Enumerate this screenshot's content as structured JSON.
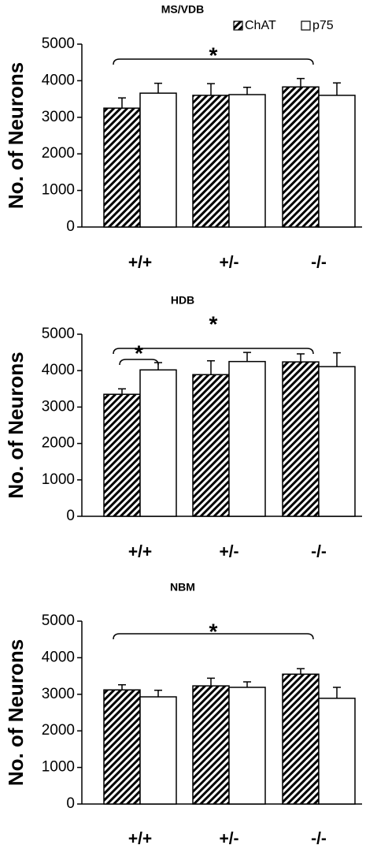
{
  "chart_data": [
    {
      "type": "bar",
      "title": "MS/VDB",
      "ylabel": "No. of Neurons",
      "xlabel": "",
      "categories": [
        "+/+",
        "+/-",
        "-/-"
      ],
      "ylim": [
        0,
        5000
      ],
      "yticks": [
        0,
        1000,
        2000,
        3000,
        4000,
        5000
      ],
      "grid": false,
      "legend": "top-right",
      "series": [
        {
          "name": "ChAT",
          "pattern": "hatched",
          "values": [
            3250,
            3600,
            3830
          ],
          "errors": [
            280,
            320,
            230
          ]
        },
        {
          "name": "p75",
          "pattern": "open",
          "values": [
            3660,
            3620,
            3600
          ],
          "errors": [
            270,
            200,
            340
          ]
        }
      ],
      "annotations": [
        {
          "text": "*",
          "from_category": "+/+",
          "to_category": "-/-"
        }
      ]
    },
    {
      "type": "bar",
      "title": "HDB",
      "ylabel": "No. of Neurons",
      "xlabel": "",
      "categories": [
        "+/+",
        "+/-",
        "-/-"
      ],
      "ylim": [
        0,
        5000
      ],
      "yticks": [
        0,
        1000,
        2000,
        3000,
        4000,
        5000
      ],
      "grid": false,
      "series": [
        {
          "name": "ChAT",
          "pattern": "hatched",
          "values": [
            3350,
            3890,
            4240
          ],
          "errors": [
            150,
            380,
            220
          ]
        },
        {
          "name": "p75",
          "pattern": "open",
          "values": [
            4020,
            4250,
            4110
          ],
          "errors": [
            200,
            250,
            380
          ]
        }
      ],
      "annotations": [
        {
          "text": "*",
          "from_category": "+/+",
          "to_category": "-/-"
        },
        {
          "text": "*",
          "within_category": "+/+"
        }
      ]
    },
    {
      "type": "bar",
      "title": "NBM",
      "ylabel": "No. of Neurons",
      "xlabel": "",
      "categories": [
        "+/+",
        "+/-",
        "-/-"
      ],
      "ylim": [
        0,
        5000
      ],
      "yticks": [
        0,
        1000,
        2000,
        3000,
        4000,
        5000
      ],
      "grid": false,
      "series": [
        {
          "name": "ChAT",
          "pattern": "hatched",
          "values": [
            3120,
            3230,
            3550
          ],
          "errors": [
            140,
            210,
            150
          ]
        },
        {
          "name": "p75",
          "pattern": "open",
          "values": [
            2930,
            3190,
            2890
          ],
          "errors": [
            180,
            150,
            300
          ]
        }
      ],
      "annotations": [
        {
          "text": "*",
          "from_category": "+/+",
          "to_category": "-/-"
        }
      ]
    }
  ]
}
